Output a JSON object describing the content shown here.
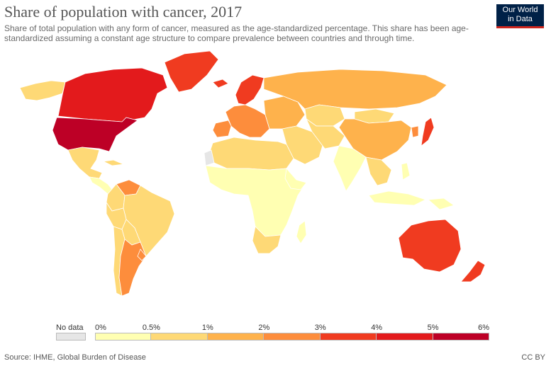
{
  "header": {
    "title": "Share of population with cancer, 2017",
    "subtitle": "Share of total population with any form of cancer, measured as the age-standardized percentage. This share has been age-standardized assuming a constant age structure to compare prevalence between countries and through time.",
    "logo_line1": "Our World",
    "logo_line2": "in Data"
  },
  "legend": {
    "no_data_label": "No data",
    "no_data_color": "#e6e6e6",
    "ticks": [
      "0%",
      "0.5%",
      "1%",
      "2%",
      "3%",
      "4%",
      "5%",
      "6%"
    ],
    "bins": [
      {
        "range": "0–0.5%",
        "color": "#ffffb2"
      },
      {
        "range": "0.5–1%",
        "color": "#fed976"
      },
      {
        "range": "1–2%",
        "color": "#feb24c"
      },
      {
        "range": "2–3%",
        "color": "#fd8d3c"
      },
      {
        "range": "3–4%",
        "color": "#f03b20"
      },
      {
        "range": "4–5%",
        "color": "#e31a1c"
      },
      {
        "range": "5–6%",
        "color": "#bd0026"
      }
    ]
  },
  "map_colors": {
    "ocean": "#ffffff",
    "border": "#ffffff"
  },
  "regions": [
    {
      "name": "Alaska",
      "color": "#fed976"
    },
    {
      "name": "Canada",
      "color": "#e31a1c"
    },
    {
      "name": "Greenland",
      "color": "#f03b20"
    },
    {
      "name": "United States",
      "color": "#bd0026"
    },
    {
      "name": "Mexico",
      "color": "#fed976"
    },
    {
      "name": "Central America",
      "color": "#ffffb2"
    },
    {
      "name": "Cuba",
      "color": "#fed976"
    },
    {
      "name": "Venezuela",
      "color": "#fd8d3c"
    },
    {
      "name": "Colombia",
      "color": "#fed976"
    },
    {
      "name": "Brazil",
      "color": "#fed976"
    },
    {
      "name": "Peru",
      "color": "#fed976"
    },
    {
      "name": "Bolivia",
      "color": "#fed976"
    },
    {
      "name": "Chile",
      "color": "#fed976"
    },
    {
      "name": "Argentina",
      "color": "#fd8d3c"
    },
    {
      "name": "Uruguay",
      "color": "#fd8d3c"
    },
    {
      "name": "Iceland",
      "color": "#f03b20"
    },
    {
      "name": "Scandinavia",
      "color": "#f03b20"
    },
    {
      "name": "Western Europe",
      "color": "#fd8d3c"
    },
    {
      "name": "Iberia",
      "color": "#fd8d3c"
    },
    {
      "name": "Eastern Europe",
      "color": "#feb24c"
    },
    {
      "name": "Russia",
      "color": "#feb24c"
    },
    {
      "name": "Kazakhstan",
      "color": "#fed976"
    },
    {
      "name": "Mongolia",
      "color": "#fed976"
    },
    {
      "name": "China",
      "color": "#feb24c"
    },
    {
      "name": "Korea",
      "color": "#fd8d3c"
    },
    {
      "name": "Japan",
      "color": "#f03b20"
    },
    {
      "name": "Middle East",
      "color": "#fed976"
    },
    {
      "name": "Iran & Central Asia",
      "color": "#fed976"
    },
    {
      "name": "India",
      "color": "#ffffb2"
    },
    {
      "name": "Southeast Asia",
      "color": "#fed976"
    },
    {
      "name": "Indonesia",
      "color": "#ffffb2"
    },
    {
      "name": "Papua New Guinea",
      "color": "#ffffb2"
    },
    {
      "name": "Philippines",
      "color": "#ffffb2"
    },
    {
      "name": "North Africa",
      "color": "#fed976"
    },
    {
      "name": "Western Sahara",
      "color": "#e6e6e6"
    },
    {
      "name": "Sub-Saharan Africa",
      "color": "#ffffb2"
    },
    {
      "name": "Ethiopia",
      "color": "#ffffb2"
    },
    {
      "name": "South Africa",
      "color": "#fed976"
    },
    {
      "name": "Madagascar",
      "color": "#ffffb2"
    },
    {
      "name": "Australia",
      "color": "#f03b20"
    },
    {
      "name": "New Zealand",
      "color": "#f03b20"
    }
  ],
  "footer": {
    "source": "Source: IHME, Global Burden of Disease",
    "license": "CC BY"
  }
}
